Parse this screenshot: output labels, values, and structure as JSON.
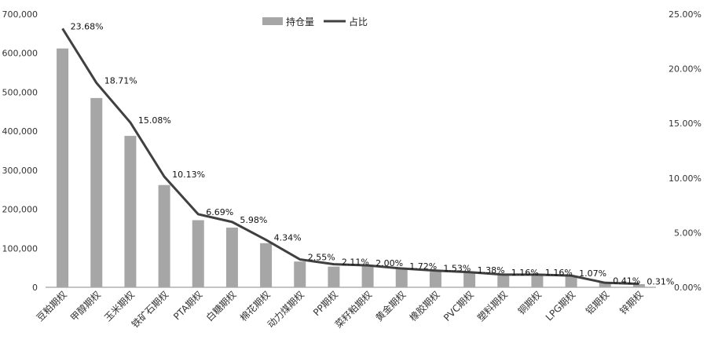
{
  "chart_data": {
    "type": "bar",
    "categories": [
      "豆粕期权",
      "甲醇期权",
      "玉米期权",
      "铁矿石期权",
      "PTA期权",
      "白糖期权",
      "棉花期权",
      "动力煤期权",
      "PP期权",
      "菜籽粕期权",
      "黄金期权",
      "橡胶期权",
      "PVC期权",
      "塑料期权",
      "铜期权",
      "LPG期权",
      "铝期权",
      "锌期权"
    ],
    "series": [
      {
        "name": "持仓量",
        "type": "bar",
        "axis": "left",
        "values": [
          612000,
          485000,
          388000,
          262000,
          172000,
          153000,
          113000,
          66000,
          53000,
          57000,
          48000,
          40000,
          38000,
          33000,
          30000,
          30000,
          12000,
          8000
        ]
      },
      {
        "name": "占比",
        "type": "line",
        "axis": "right",
        "values": [
          23.68,
          18.71,
          15.08,
          10.13,
          6.69,
          5.98,
          4.34,
          2.55,
          2.11,
          2.0,
          1.72,
          1.53,
          1.38,
          1.16,
          1.16,
          1.07,
          0.41,
          0.31
        ]
      }
    ],
    "data_labels": [
      "23.68%",
      "18.71%",
      "15.08%",
      "10.13%",
      "6.69%",
      "5.98%",
      "4.34%",
      "2.55%",
      "2.11%",
      "2.00%",
      "1.72%",
      "1.53%",
      "1.38%",
      "1.16%",
      "1.16%",
      "1.07%",
      "0.41%",
      "0.31%"
    ],
    "y_left": {
      "min": 0,
      "max": 700000,
      "ticks": [
        "0",
        "100,000",
        "200,000",
        "300,000",
        "400,000",
        "500,000",
        "600,000",
        "700,000"
      ]
    },
    "y_right": {
      "min": 0,
      "max": 25,
      "ticks": [
        "0.00%",
        "5.00%",
        "10.00%",
        "15.00%",
        "20.00%",
        "25.00%"
      ]
    },
    "legend_position": "top-center",
    "grid": false,
    "colors": {
      "bar": "#a6a6a6",
      "line": "#404040"
    }
  }
}
